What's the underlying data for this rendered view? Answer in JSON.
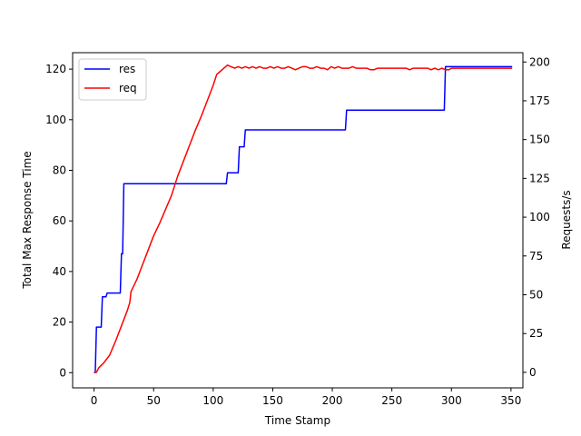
{
  "chart_data": {
    "type": "line",
    "title": "",
    "xlabel": "Time Stamp",
    "ylabel_left": "Total Max Response Time",
    "ylabel_right": "Requests/s",
    "xlim": [
      -18,
      360
    ],
    "ylim_left": [
      -6,
      126.5
    ],
    "ylim_right": [
      -10,
      206
    ],
    "x_ticks": [
      0,
      50,
      100,
      150,
      200,
      250,
      300,
      350
    ],
    "y_ticks_left": [
      0,
      20,
      40,
      60,
      80,
      100,
      120
    ],
    "y_ticks_right": [
      0,
      25,
      50,
      75,
      100,
      125,
      150,
      175,
      200
    ],
    "grid": false,
    "legend_position": "top-left",
    "series": [
      {
        "name": "res",
        "axis": "left",
        "color": "#0000ff",
        "points": [
          [
            0,
            0
          ],
          [
            1,
            0
          ],
          [
            2,
            18
          ],
          [
            6,
            18
          ],
          [
            7,
            30
          ],
          [
            10,
            30
          ],
          [
            11,
            31.5
          ],
          [
            22,
            31.5
          ],
          [
            23,
            47
          ],
          [
            24,
            47
          ],
          [
            25,
            74.7
          ],
          [
            111,
            74.7
          ],
          [
            112,
            79
          ],
          [
            121,
            79
          ],
          [
            122,
            89.3
          ],
          [
            126,
            89.3
          ],
          [
            127,
            96
          ],
          [
            211,
            96
          ],
          [
            212,
            103.8
          ],
          [
            294,
            103.8
          ],
          [
            295,
            121
          ],
          [
            351,
            121
          ]
        ]
      },
      {
        "name": "req",
        "axis": "right",
        "color": "#ff0000",
        "points": [
          [
            0,
            0
          ],
          [
            2,
            0
          ],
          [
            4,
            3
          ],
          [
            8,
            6
          ],
          [
            13,
            11
          ],
          [
            18,
            20
          ],
          [
            23,
            30
          ],
          [
            28,
            40
          ],
          [
            30,
            45
          ],
          [
            31,
            52
          ],
          [
            36,
            60
          ],
          [
            40,
            68
          ],
          [
            45,
            78
          ],
          [
            50,
            88
          ],
          [
            55,
            96
          ],
          [
            60,
            105
          ],
          [
            65,
            114
          ],
          [
            70,
            126
          ],
          [
            75,
            136
          ],
          [
            80,
            146
          ],
          [
            85,
            156
          ],
          [
            90,
            165
          ],
          [
            95,
            175
          ],
          [
            100,
            185
          ],
          [
            103,
            192
          ],
          [
            106,
            194
          ],
          [
            109,
            196
          ],
          [
            112,
            198
          ],
          [
            115,
            197
          ],
          [
            118,
            196
          ],
          [
            121,
            197
          ],
          [
            124,
            196
          ],
          [
            127,
            197
          ],
          [
            130,
            196
          ],
          [
            133,
            197
          ],
          [
            136,
            196
          ],
          [
            139,
            197
          ],
          [
            142,
            196
          ],
          [
            145,
            196
          ],
          [
            148,
            197
          ],
          [
            151,
            196
          ],
          [
            154,
            197
          ],
          [
            157,
            196
          ],
          [
            160,
            196
          ],
          [
            163,
            197
          ],
          [
            166,
            196
          ],
          [
            169,
            195
          ],
          [
            172,
            196
          ],
          [
            175,
            197
          ],
          [
            178,
            197
          ],
          [
            181,
            196
          ],
          [
            184,
            196
          ],
          [
            187,
            197
          ],
          [
            190,
            196
          ],
          [
            193,
            196
          ],
          [
            196,
            195
          ],
          [
            199,
            197
          ],
          [
            202,
            196
          ],
          [
            205,
            197
          ],
          [
            208,
            196
          ],
          [
            211,
            196
          ],
          [
            214,
            196
          ],
          [
            217,
            197
          ],
          [
            220,
            196
          ],
          [
            223,
            196
          ],
          [
            226,
            196
          ],
          [
            229,
            196
          ],
          [
            232,
            195
          ],
          [
            235,
            195
          ],
          [
            238,
            196
          ],
          [
            241,
            196
          ],
          [
            244,
            196
          ],
          [
            247,
            196
          ],
          [
            250,
            196
          ],
          [
            253,
            196
          ],
          [
            256,
            196
          ],
          [
            259,
            196
          ],
          [
            262,
            196
          ],
          [
            265,
            195
          ],
          [
            268,
            196
          ],
          [
            271,
            196
          ],
          [
            274,
            196
          ],
          [
            277,
            196
          ],
          [
            280,
            196
          ],
          [
            283,
            195
          ],
          [
            286,
            196
          ],
          [
            289,
            195
          ],
          [
            292,
            196
          ],
          [
            295,
            195
          ],
          [
            298,
            195
          ],
          [
            300,
            196
          ],
          [
            320,
            196
          ],
          [
            351,
            196
          ]
        ]
      }
    ]
  }
}
